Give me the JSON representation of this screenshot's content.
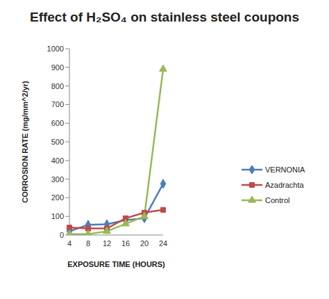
{
  "chart_data": {
    "type": "line",
    "title": "Effect of H₂SO₄ on stainless steel coupons",
    "x_label": "EXPOSURE TIME (HOURS)",
    "y_label": "CORROSION RATE (mg/mm^2/yr)",
    "categories": [
      "4",
      "8",
      "12",
      "16",
      "20",
      "24"
    ],
    "series": [
      {
        "name": "VERNONIA",
        "color": "#4a7ebb",
        "marker": "diamond",
        "values": [
          20,
          55,
          58,
          80,
          90,
          275
        ]
      },
      {
        "name": "Azadrachta",
        "color": "#be4b48",
        "marker": "square",
        "values": [
          40,
          35,
          35,
          90,
          120,
          135
        ]
      },
      {
        "name": "Control",
        "color": "#98b954",
        "marker": "triangle",
        "values": [
          5,
          5,
          20,
          60,
          100,
          890
        ]
      }
    ],
    "ylim": [
      0,
      1000
    ],
    "yticks": [
      0,
      100,
      200,
      300,
      400,
      500,
      600,
      700,
      800,
      900,
      1000
    ],
    "grid": false,
    "legend": "right"
  }
}
